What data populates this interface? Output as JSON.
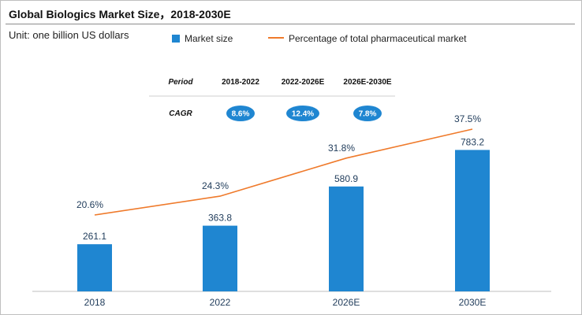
{
  "title": "Global Biologics Market Size，2018-2030E",
  "unit_label": "Unit: one billion US dollars",
  "colors": {
    "bar": "#1f86d1",
    "line": "#ef7a2b",
    "pill": "#1f86d1",
    "axis": "#bfbfbf"
  },
  "cagr_table": {
    "period_header": "Period",
    "cagr_header": "CAGR",
    "periods": [
      "2018-2022",
      "2022-2026E",
      "2026E-2030E"
    ],
    "cagr_values": [
      "8.6%",
      "12.4%",
      "7.8%"
    ]
  },
  "chart_data": {
    "type": "bar",
    "categories": [
      "2018",
      "2022",
      "2026E",
      "2030E"
    ],
    "series": [
      {
        "name": "Market size",
        "type": "bar",
        "values": [
          261.1,
          363.8,
          580.9,
          783.2
        ],
        "labels": [
          "261.1",
          "363.8",
          "580.9",
          "783.2"
        ]
      },
      {
        "name": "Percentage of total pharmaceutical market",
        "type": "line",
        "values": [
          20.6,
          24.3,
          31.8,
          37.5
        ],
        "labels": [
          "20.6%",
          "24.3%",
          "31.8%",
          "37.5%"
        ]
      }
    ],
    "title": "Global Biologics Market Size，2018-2030E",
    "xlabel": "",
    "ylabel": "",
    "grid": false,
    "legend_position": "top"
  }
}
